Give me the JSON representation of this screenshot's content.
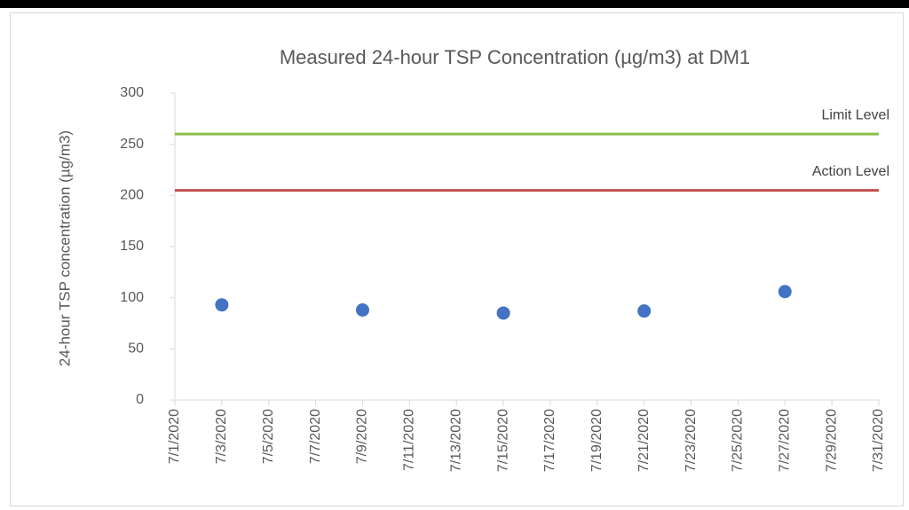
{
  "chart_data": {
    "type": "scatter",
    "title": "Measured 24-hour TSP Concentration (µg/m3) at DM1",
    "y_label": "24-hour TSP concentration (µg/m3)",
    "x": [
      "7/3/2020",
      "7/9/2020",
      "7/15/2020",
      "7/21/2020",
      "7/27/2020"
    ],
    "values": [
      93,
      88,
      85,
      87,
      106
    ],
    "color": "#4472c4",
    "reference_lines": [
      {
        "label": "Limit Level",
        "value": 260,
        "color": "#8cbf4a"
      },
      {
        "label": "Action Level",
        "value": 205,
        "color": "#c0504d"
      }
    ],
    "xlim": [
      "7/1/2020",
      "7/31/2020"
    ],
    "xticks": [
      "7/1/2020",
      "7/3/2020",
      "7/5/2020",
      "7/7/2020",
      "7/9/2020",
      "7/11/2020",
      "7/13/2020",
      "7/15/2020",
      "7/17/2020",
      "7/19/2020",
      "7/21/2020",
      "7/23/2020",
      "7/25/2020",
      "7/27/2020",
      "7/29/2020",
      "7/31/2020"
    ],
    "ylim": [
      0,
      300
    ],
    "yticks": [
      0,
      50,
      100,
      150,
      200,
      250,
      300
    ],
    "grid": false
  }
}
